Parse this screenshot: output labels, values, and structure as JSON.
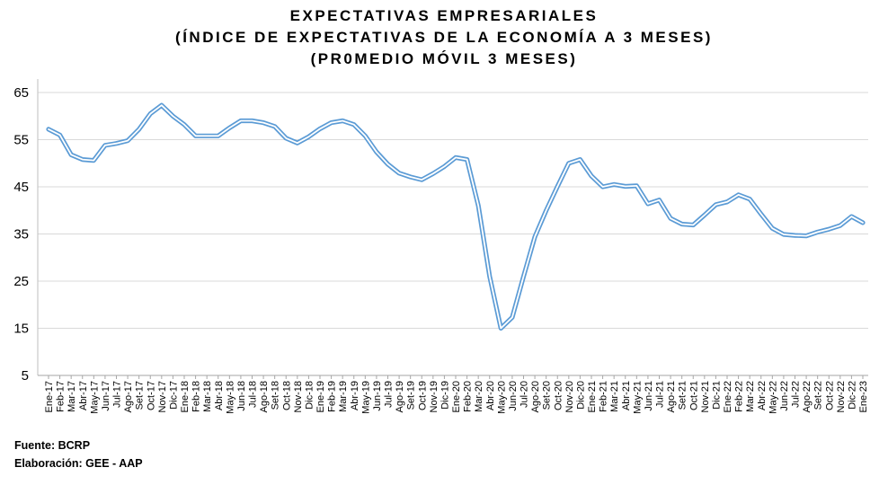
{
  "chart_data": {
    "type": "line",
    "title": "EXPECTATIVAS EMPRESARIALES",
    "subtitle": "(ÍNDICE DE EXPECTATIVAS DE LA ECONOMÍA A 3 MESES)",
    "subtitle2": "(PR0MEDIO MÓVIL 3 MESES)",
    "xlabel": "",
    "ylabel": "",
    "ylim": [
      5,
      65
    ],
    "yticks": [
      5,
      15,
      25,
      35,
      45,
      55,
      65
    ],
    "grid": true,
    "line_color": "#5b9bd5",
    "categories": [
      "Ene-17",
      "Feb-17",
      "Mar-17",
      "Abr-17",
      "May-17",
      "Jun-17",
      "Jul-17",
      "Ago-17",
      "Set-17",
      "Oct-17",
      "Nov-17",
      "Dic-17",
      "Ene-18",
      "Feb-18",
      "Mar-18",
      "Abr-18",
      "May-18",
      "Jun-18",
      "Jul-18",
      "Ago-18",
      "Set-18",
      "Oct-18",
      "Nov-18",
      "Dic-18",
      "Ene-19",
      "Feb-19",
      "Mar-19",
      "Abr-19",
      "May-19",
      "Jun-19",
      "Jul-19",
      "Ago-19",
      "Set-19",
      "Oct-19",
      "Nov-19",
      "Dic-19",
      "Ene-20",
      "Feb-20",
      "Mar-20",
      "Abr-20",
      "May-20",
      "Jun-20",
      "Jul-20",
      "Ago-20",
      "Set-20",
      "Oct-20",
      "Nov-20",
      "Dic-20",
      "Ene-21",
      "Feb-21",
      "Mar-21",
      "Abr-21",
      "May-21",
      "Jun-21",
      "Jul-21",
      "Ago-21",
      "Set-21",
      "Oct-21",
      "Nov-21",
      "Dic-21",
      "Ene-22",
      "Feb-22",
      "Mar-22",
      "Abr-22",
      "May-22",
      "Jun-22",
      "Jul-22",
      "Ago-22",
      "Set-22",
      "Oct-22",
      "Nov-22",
      "Dic-22",
      "Ene-23"
    ],
    "values": [
      57.2,
      56.0,
      51.8,
      50.8,
      50.6,
      53.8,
      54.2,
      54.8,
      57.2,
      60.5,
      62.3,
      60.0,
      58.2,
      55.8,
      55.8,
      55.8,
      57.5,
      59.0,
      59.0,
      58.6,
      57.8,
      55.3,
      54.3,
      55.6,
      57.3,
      58.6,
      59.0,
      58.2,
      55.8,
      52.4,
      49.8,
      47.9,
      47.1,
      46.5,
      47.8,
      49.3,
      51.2,
      50.8,
      41.0,
      26.0,
      15.0,
      17.3,
      26.0,
      34.4,
      40.0,
      45.1,
      50.0,
      50.8,
      47.3,
      45.0,
      45.5,
      45.1,
      45.2,
      41.4,
      42.2,
      38.3,
      37.1,
      36.9,
      39.0,
      41.2,
      41.8,
      43.3,
      42.4,
      39.2,
      36.2,
      34.9,
      34.7,
      34.6,
      35.4,
      36.0,
      36.8,
      38.7,
      37.4
    ]
  },
  "footer": {
    "source": "Fuente: BCRP",
    "elaboration": "Elaboración: GEE - AAP"
  }
}
